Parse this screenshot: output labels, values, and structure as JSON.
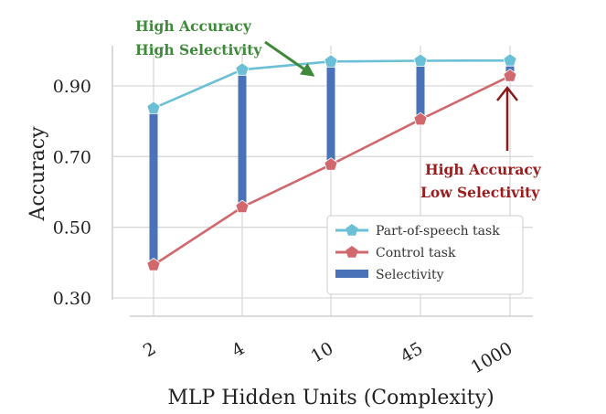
{
  "chart_data": {
    "type": "line",
    "categories": [
      "2",
      "4",
      "10",
      "45",
      "1000"
    ],
    "series": [
      {
        "name": "Part-of-speech task",
        "values": [
          0.837,
          0.946,
          0.969,
          0.971,
          0.972
        ],
        "color": "#6bbfd6",
        "marker": "pentagon"
      },
      {
        "name": "Control task",
        "values": [
          0.393,
          0.557,
          0.677,
          0.805,
          0.928
        ],
        "color": "#d0686d",
        "marker": "pentagon"
      },
      {
        "name": "Selectivity",
        "type": "bar-range",
        "color": "#4a72b8"
      }
    ],
    "xlabel": "MLP Hidden Units (Complexity)",
    "ylabel": "Accuracy",
    "yticks": [
      0.3,
      0.5,
      0.7,
      0.9
    ],
    "ytick_labels": [
      "0.30",
      "0.50",
      "0.70",
      "0.90"
    ],
    "ylim": [
      0.28,
      1.0
    ],
    "grid": true,
    "legend_position": "lower-right",
    "annotations": [
      {
        "lines": [
          "High Accuracy",
          "High Selectivity"
        ],
        "color": "#3f8a3a",
        "points_to": "10"
      },
      {
        "lines": [
          "High Accuracy",
          "Low Selectivity"
        ],
        "color": "#9b1c1c",
        "points_to": "1000"
      }
    ]
  }
}
